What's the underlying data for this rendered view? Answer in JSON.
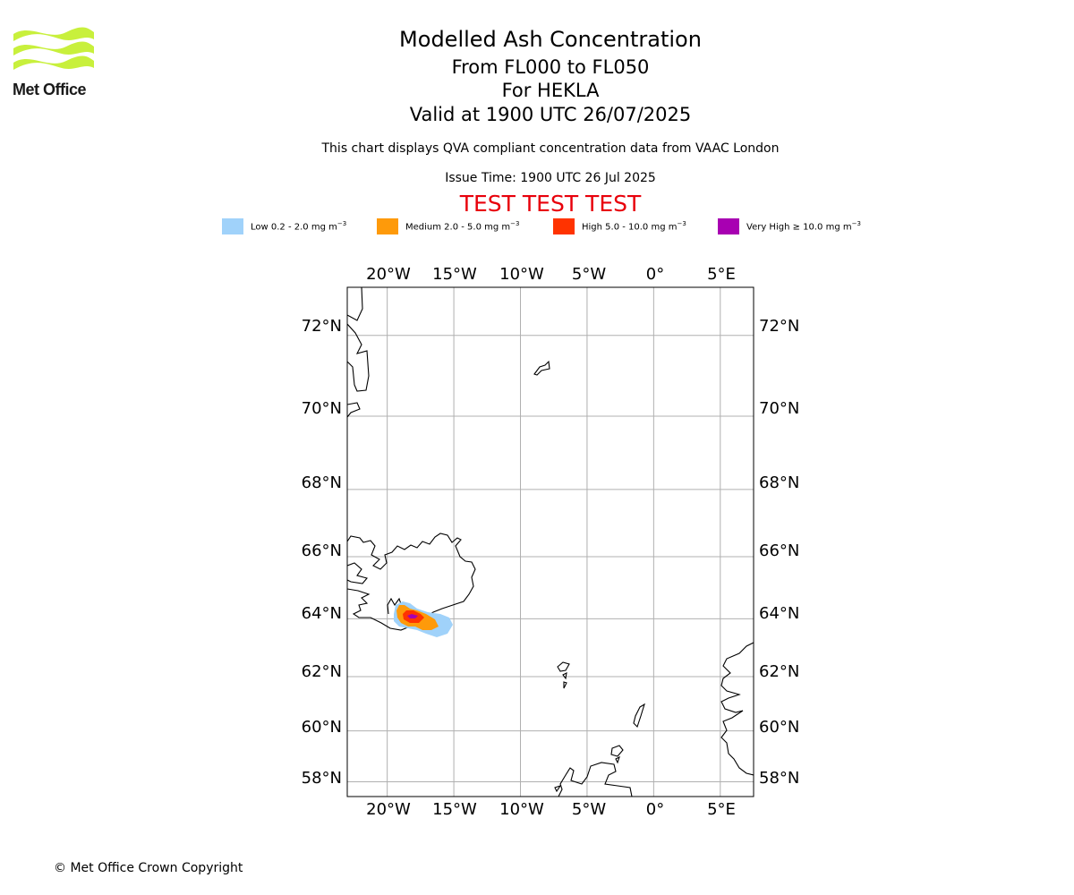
{
  "logo": {
    "text": "Met Office"
  },
  "titles": {
    "main": "Modelled Ash Concentration",
    "levels": "From FL000 to FL050",
    "volcano": "For HEKLA",
    "valid": "Valid at 1900 UTC 26/07/2025",
    "description": "This chart displays QVA compliant concentration data from VAAC London",
    "issue": "Issue Time: 1900 UTC 26 Jul 2025",
    "test_banner": "TEST TEST TEST"
  },
  "legend": [
    {
      "label": "Low 0.2 - 2.0 mg m",
      "sup": "−3",
      "color": "#a0d2fa"
    },
    {
      "label": "Medium 2.0 - 5.0 mg m",
      "sup": "−3",
      "color": "#fe9a0a"
    },
    {
      "label": "High 5.0 - 10.0 mg m",
      "sup": "−3",
      "color": "#ff3300"
    },
    {
      "label": "Very High  ≥  10.0 mg m",
      "sup": "−3",
      "color": "#a800b2"
    }
  ],
  "map": {
    "lon_ticks": [
      "20°W",
      "15°W",
      "10°W",
      "5°W",
      "0°",
      "5°E"
    ],
    "lat_ticks": [
      "72°N",
      "70°N",
      "68°N",
      "66°N",
      "64°N",
      "62°N",
      "60°N",
      "58°N"
    ],
    "lon_values": [
      -20,
      -15,
      -10,
      -5,
      0,
      5
    ],
    "lat_values": [
      72,
      70,
      68,
      66,
      64,
      62,
      60,
      58
    ],
    "extent": {
      "lon_min": -23,
      "lon_max": 7.5,
      "lat_min": 57.4,
      "lat_max": 73.1
    },
    "gridline_color": "#b0b0b0",
    "volcano_name": "HEKLA"
  },
  "footer": {
    "copyright": "© Met Office Crown Copyright"
  }
}
